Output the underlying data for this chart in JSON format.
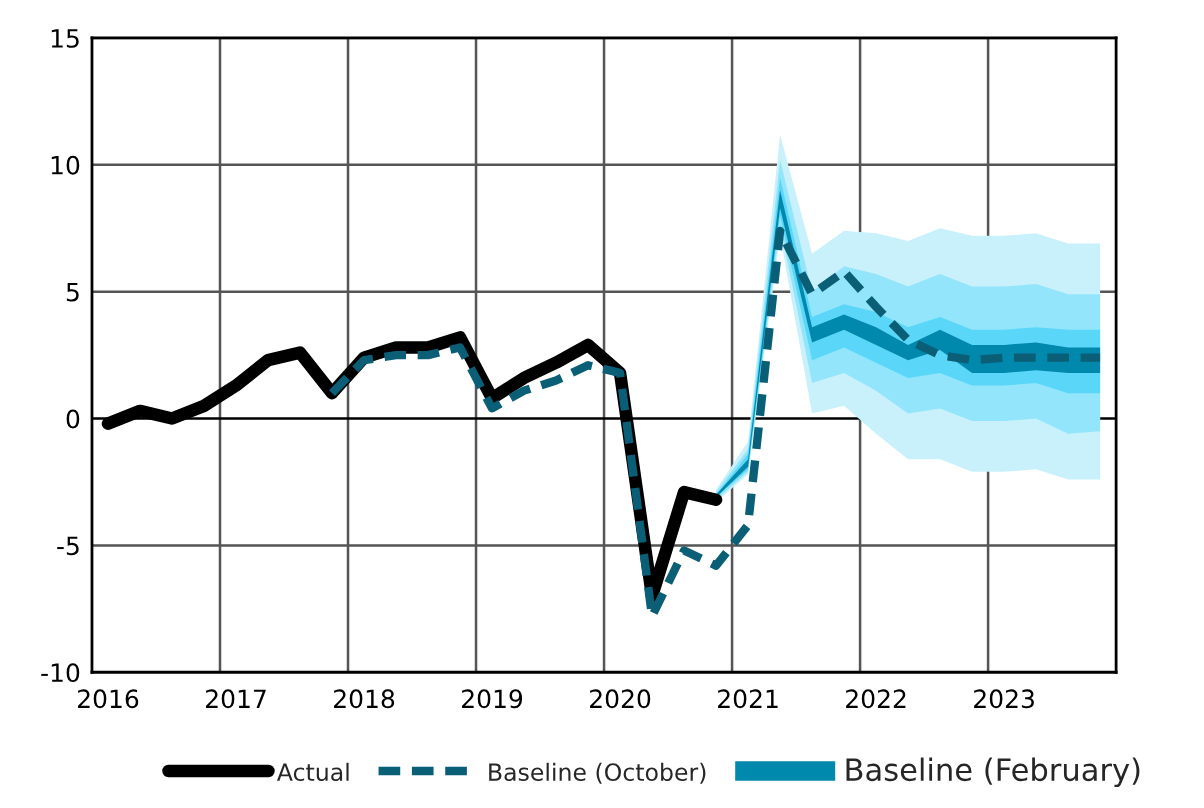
{
  "chart_data": {
    "type": "line",
    "xlim": [
      2015.875,
      2023.875
    ],
    "xticks": [
      {
        "value": 2016,
        "label": "2016"
      },
      {
        "value": 2016.875,
        "label": null
      },
      {
        "value": 2017,
        "label": "2017"
      },
      {
        "value": 2017.875,
        "label": null
      },
      {
        "value": 2018,
        "label": "2018"
      },
      {
        "value": 2018.875,
        "label": null
      },
      {
        "value": 2019,
        "label": "2019"
      },
      {
        "value": 2019.875,
        "label": null
      },
      {
        "value": 2020,
        "label": "2020"
      },
      {
        "value": 2020.875,
        "label": null
      },
      {
        "value": 2021,
        "label": "2021"
      },
      {
        "value": 2021.875,
        "label": null
      },
      {
        "value": 2022,
        "label": "2022"
      },
      {
        "value": 2022.875,
        "label": null
      },
      {
        "value": 2023,
        "label": "2023"
      }
    ],
    "ylim": [
      -10,
      15
    ],
    "yticks": [
      -10,
      -5,
      0,
      5,
      10,
      15
    ],
    "grid": true,
    "legend": "bottom",
    "series": [
      {
        "type": "area",
        "color": "#c8f1fc",
        "x": [
          2020.75,
          2021,
          2021.25,
          2021.5,
          2021.75,
          2022,
          2022.25,
          2022.5,
          2022.75,
          2023,
          2023.25,
          2023.5,
          2023.75
        ],
        "values": [
          null,
          null,
          null,
          null,
          null,
          null,
          null,
          null,
          null,
          null,
          null,
          null,
          null
        ],
        "lower": [
          -3.3,
          -2.2,
          7.2,
          0.2,
          0.5,
          -0.6,
          -1.6,
          -1.6,
          -2.1,
          -2.1,
          -2.0,
          -2.4,
          -2.4
        ],
        "upper": [
          -2.8,
          -0.9,
          11.2,
          6.5,
          7.4,
          7.3,
          7.0,
          7.5,
          7.2,
          7.2,
          7.3,
          6.9,
          6.9
        ]
      },
      {
        "type": "area",
        "color": "#92e5fb",
        "x": [
          2020.75,
          2021,
          2021.25,
          2021.5,
          2021.75,
          2022,
          2022.25,
          2022.5,
          2022.75,
          2023,
          2023.25,
          2023.5,
          2023.75
        ],
        "values": [
          null,
          null,
          null,
          null,
          null,
          null,
          null,
          null,
          null,
          null,
          null,
          null,
          null
        ],
        "lower": [
          -3.2,
          -2.1,
          7.6,
          1.4,
          1.8,
          1.1,
          0.2,
          0.4,
          -0.1,
          -0.1,
          0.0,
          -0.6,
          -0.5
        ],
        "upper": [
          -2.9,
          -1.2,
          10.2,
          5.0,
          6.0,
          5.7,
          5.2,
          5.7,
          5.2,
          5.2,
          5.3,
          4.9,
          4.9
        ]
      },
      {
        "type": "area",
        "color": "#5ad6f8",
        "x": [
          2020.75,
          2021,
          2021.25,
          2021.5,
          2021.75,
          2022,
          2022.25,
          2022.5,
          2022.75,
          2023,
          2023.25,
          2023.5,
          2023.75
        ],
        "values": [
          null,
          null,
          null,
          null,
          null,
          null,
          null,
          null,
          null,
          null,
          null,
          null,
          null
        ],
        "lower": [
          -3.1,
          -2.0,
          8.0,
          2.3,
          2.8,
          2.2,
          1.6,
          1.8,
          1.3,
          1.3,
          1.4,
          1.0,
          1.0
        ],
        "upper": [
          -3.0,
          -1.4,
          9.5,
          4.0,
          4.5,
          4.2,
          3.6,
          4.0,
          3.5,
          3.5,
          3.6,
          3.5,
          3.5
        ]
      },
      {
        "type": "area",
        "name": "Baseline (February)",
        "color": "#0088ad",
        "x": [
          2020.75,
          2021,
          2021.25,
          2021.5,
          2021.75,
          2022,
          2022.25,
          2022.5,
          2022.75,
          2023,
          2023.25,
          2023.5,
          2023.75
        ],
        "values": [
          null,
          null,
          null,
          null,
          null,
          null,
          null,
          null,
          null,
          null,
          null,
          null,
          null
        ],
        "lower": [
          -3.1,
          -1.9,
          8.3,
          3.0,
          3.5,
          2.9,
          2.3,
          2.7,
          1.8,
          1.8,
          1.9,
          1.8,
          1.8
        ],
        "upper": [
          -3.0,
          -1.6,
          9.0,
          3.6,
          4.1,
          3.6,
          2.9,
          3.5,
          2.9,
          2.9,
          3.0,
          2.8,
          2.8
        ]
      },
      {
        "name": "Actual",
        "color": "#000000",
        "line_style": "solid",
        "x": [
          2016,
          2016.25,
          2016.5,
          2016.75,
          2017,
          2017.25,
          2017.5,
          2017.75,
          2018,
          2018.25,
          2018.5,
          2018.75,
          2019,
          2019.25,
          2019.5,
          2019.75,
          2020,
          2020.25,
          2020.5,
          2020.75
        ],
        "values": [
          -0.2,
          0.3,
          0.0,
          0.5,
          1.3,
          2.3,
          2.6,
          1.0,
          2.4,
          2.8,
          2.8,
          3.2,
          0.8,
          1.6,
          2.2,
          2.9,
          1.8,
          -7.0,
          -2.9,
          -3.2
        ]
      },
      {
        "name": "Baseline (October)",
        "color": "#0a5f77",
        "line_style": "dashed",
        "x": [
          2017.75,
          2018,
          2018.25,
          2018.5,
          2018.75,
          2019,
          2019.25,
          2019.5,
          2019.75,
          2020,
          2020.25,
          2020.5,
          2020.75,
          2021,
          2021.25,
          2021.5,
          2021.75,
          2022,
          2022.25,
          2022.5,
          2022.75,
          2023,
          2023.25,
          2023.5,
          2023.75
        ],
        "values": [
          1.0,
          2.3,
          2.5,
          2.5,
          2.8,
          0.4,
          1.1,
          1.5,
          2.1,
          1.8,
          -7.8,
          -5.2,
          -5.8,
          -4.2,
          7.4,
          4.9,
          5.8,
          4.4,
          3.1,
          2.5,
          2.3,
          2.4,
          2.4,
          2.4,
          2.4
        ]
      }
    ]
  }
}
